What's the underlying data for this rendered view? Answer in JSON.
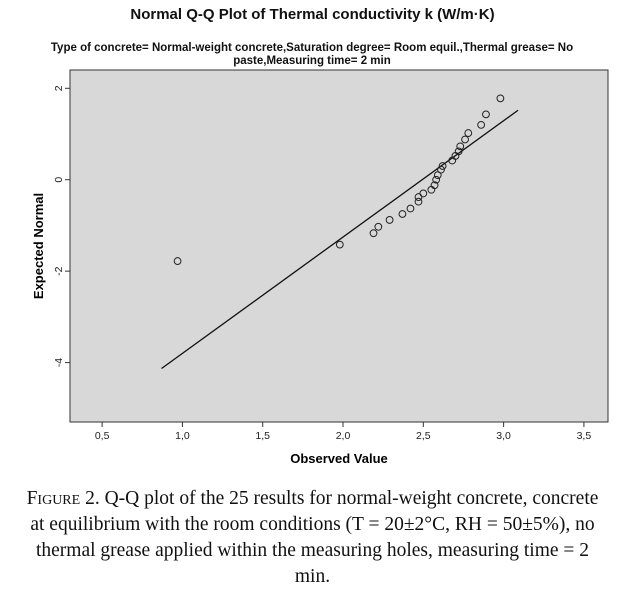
{
  "chart_data": {
    "type": "scatter",
    "title": "Normal Q-Q Plot of Thermal conductivity k (W/m·K)",
    "subtitle": "Type of concrete= Normal-weight concrete,Saturation degree= Room equil.,Thermal grease= No paste,Measuring time= 2 min",
    "xlabel": "Observed Value",
    "ylabel": "Expected Normal",
    "xlim": [
      0.3,
      3.65
    ],
    "ylim": [
      -5.3,
      2.4
    ],
    "x_ticks": [
      "0,5",
      "1,0",
      "1,5",
      "2,0",
      "2,5",
      "3,0",
      "3,5"
    ],
    "x_tick_values": [
      0.5,
      1.0,
      1.5,
      2.0,
      2.5,
      3.0,
      3.5
    ],
    "y_ticks": [
      "-4",
      "-2",
      "0",
      "2"
    ],
    "y_tick_values": [
      -4,
      -2,
      0,
      2
    ],
    "grid": false,
    "points": [
      {
        "x": 0.97,
        "y": -1.78
      },
      {
        "x": 1.98,
        "y": -1.42
      },
      {
        "x": 2.19,
        "y": -1.17
      },
      {
        "x": 2.22,
        "y": -1.03
      },
      {
        "x": 2.29,
        "y": -0.88
      },
      {
        "x": 2.37,
        "y": -0.75
      },
      {
        "x": 2.42,
        "y": -0.63
      },
      {
        "x": 2.47,
        "y": -0.48
      },
      {
        "x": 2.47,
        "y": -0.38
      },
      {
        "x": 2.5,
        "y": -0.3
      },
      {
        "x": 2.55,
        "y": -0.22
      },
      {
        "x": 2.57,
        "y": -0.12
      },
      {
        "x": 2.58,
        "y": 0.0
      },
      {
        "x": 2.59,
        "y": 0.1
      },
      {
        "x": 2.61,
        "y": 0.22
      },
      {
        "x": 2.62,
        "y": 0.3
      },
      {
        "x": 2.68,
        "y": 0.42
      },
      {
        "x": 2.7,
        "y": 0.52
      },
      {
        "x": 2.72,
        "y": 0.62
      },
      {
        "x": 2.73,
        "y": 0.73
      },
      {
        "x": 2.76,
        "y": 0.88
      },
      {
        "x": 2.78,
        "y": 1.02
      },
      {
        "x": 2.86,
        "y": 1.2
      },
      {
        "x": 2.89,
        "y": 1.43
      },
      {
        "x": 2.98,
        "y": 1.78
      }
    ],
    "reference_line": {
      "x": [
        0.87,
        3.09
      ],
      "y": [
        -4.13,
        1.52
      ]
    },
    "colors": {
      "plot_background": "#d8d8d8",
      "marker": "#222222",
      "line": "#111111"
    }
  },
  "caption": {
    "label": "Figure 2.",
    "text": " Q-Q plot of the 25 results for normal-weight concrete, concrete at equilibrium with the room conditions (T = 20±2°C, RH = 50±5%), no thermal grease applied within the measuring holes, measuring time = 2 min."
  }
}
